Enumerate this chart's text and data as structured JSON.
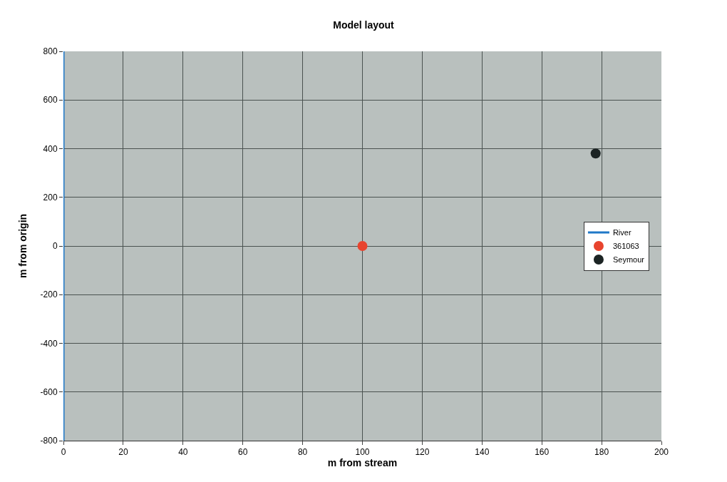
{
  "chart_data": {
    "type": "scatter",
    "title": "Model layout",
    "xlabel": "m from stream",
    "ylabel": "m from origin",
    "xlim": [
      0,
      200
    ],
    "xticks": [
      0,
      20,
      40,
      60,
      80,
      100,
      120,
      140,
      160,
      180,
      200
    ],
    "ylim": [
      -800,
      800
    ],
    "yticks": [
      -800,
      -600,
      -400,
      -200,
      0,
      200,
      400,
      600,
      800
    ],
    "series": [
      {
        "name": "River",
        "type": "line",
        "marker": "none",
        "color": "#1f78c8",
        "x": [
          0,
          0,
          0,
          0,
          0,
          0,
          0,
          0,
          0
        ],
        "values": [
          -800,
          -600,
          -400,
          -200,
          0,
          200,
          400,
          600,
          800
        ]
      },
      {
        "name": "361063",
        "marker": "circle",
        "color": "#e8442e",
        "x": [
          100
        ],
        "values": [
          0
        ]
      },
      {
        "name": "Seymour",
        "marker": "circle",
        "color": "#1c2424",
        "x": [
          178
        ],
        "values": [
          380
        ]
      }
    ],
    "grid": true,
    "legend": "right"
  }
}
